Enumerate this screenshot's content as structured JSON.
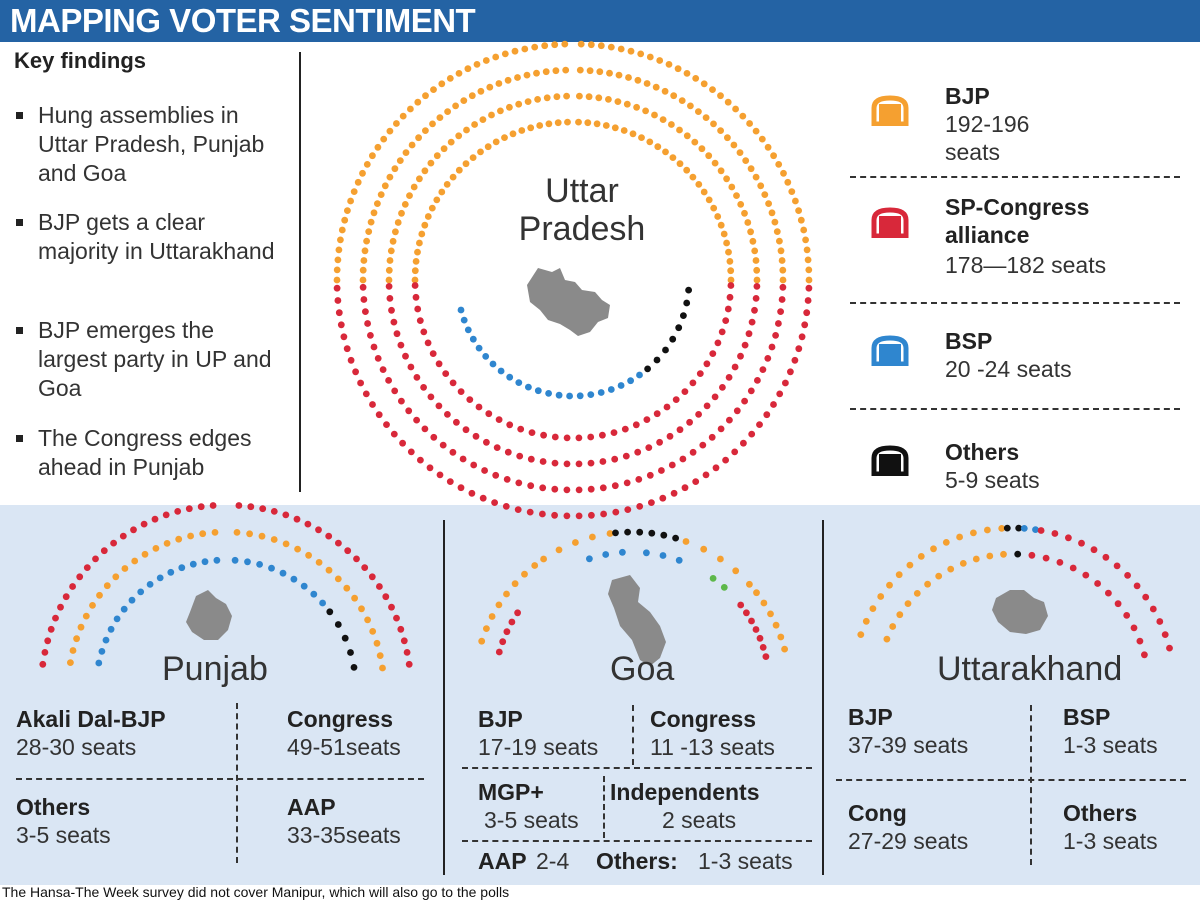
{
  "header": {
    "title": "MAPPING VOTER SENTIMENT"
  },
  "key_findings": {
    "title": "Key findings",
    "items": [
      "Hung assemblies in Uttar Pradesh, Punjab and Goa",
      "BJP gets a clear majority in Uttarakhand",
      "BJP emerges the largest party in UP and Goa",
      "The Congress edges ahead in Punjab"
    ]
  },
  "colors": {
    "BJP": "#f5a030",
    "SP-Congress alliance": "#d8283a",
    "BSP": "#2f86cf",
    "Others": "#111111",
    "Independents": "#5db84a",
    "map": "#8a8a8a",
    "banner": "#2463a4"
  },
  "chart_data": [
    {
      "type": "parliament-seat-chart",
      "title": "Uttar Pradesh",
      "series": [
        {
          "name": "BJP",
          "values": "192-196 seats",
          "estimate": 194
        },
        {
          "name": "SP-Congress alliance",
          "values": "178—182 seats",
          "estimate": 180
        },
        {
          "name": "BSP",
          "values": "20 -24 seats",
          "estimate": 22
        },
        {
          "name": "Others",
          "values": "5-9 seats",
          "estimate": 7
        }
      ]
    },
    {
      "type": "parliament-seat-chart",
      "title": "Punjab",
      "series": [
        {
          "name": "Akali Dal-BJP",
          "values": "28-30 seats",
          "estimate": 29
        },
        {
          "name": "Congress",
          "values": "49-51seats",
          "estimate": 50
        },
        {
          "name": "Others",
          "values": "3-5 seats",
          "estimate": 4
        },
        {
          "name": "AAP",
          "values": "33-35seats",
          "estimate": 34
        }
      ]
    },
    {
      "type": "parliament-seat-chart",
      "title": "Goa",
      "series": [
        {
          "name": "BJP",
          "values": "17-19 seats",
          "estimate": 18
        },
        {
          "name": "Congress",
          "values": "11 -13 seats",
          "estimate": 12
        },
        {
          "name": "MGP+",
          "values": "3-5  seats",
          "estimate": 4
        },
        {
          "name": "Independents",
          "values": "2 seats",
          "estimate": 2
        },
        {
          "name": "AAP",
          "values": "2-4",
          "estimate": 3
        },
        {
          "name": "Others:",
          "values": "1-3  seats",
          "estimate": 2
        }
      ]
    },
    {
      "type": "parliament-seat-chart",
      "title": "Uttarakhand",
      "series": [
        {
          "name": "BJP",
          "values": "37-39 seats",
          "estimate": 38
        },
        {
          "name": "BSP",
          "values": "1-3 seats",
          "estimate": 2
        },
        {
          "name": "Cong",
          "values": "27-29 seats",
          "estimate": 28
        },
        {
          "name": "Others",
          "values": "1-3 seats",
          "estimate": 2
        }
      ]
    }
  ],
  "footnote": "The Hansa-The Week survey did not cover Manipur, which will also go to the polls"
}
